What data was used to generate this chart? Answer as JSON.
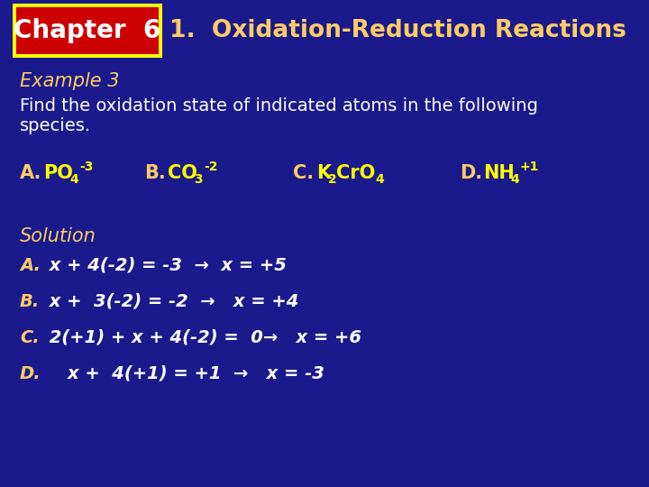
{
  "bg_color": "#1a1a8c",
  "title_text": "1.  Oxidation-Reduction Reactions",
  "title_color": "#ffcc66",
  "chapter_text": "Chapter  6",
  "chapter_bg": "#cc0000",
  "chapter_border": "#ffff00",
  "chapter_text_color": "#ffffff",
  "example_text": "Example 3",
  "example_color": "#ffcc66",
  "desc_text": "Find the oxidation state of indicated atoms in the following\nspecies.",
  "desc_color": "#ffffff",
  "item_label_color": "#ffcc66",
  "item_formula_color": "#ffff00",
  "solution_text": "Solution",
  "solution_color": "#ffcc66",
  "sol_label_color": "#ffcc66",
  "sol_text_color": "#ffffff",
  "sol_lines": [
    [
      "A.",
      " x + 4(-2) = -3  →  x = +5"
    ],
    [
      "B.",
      " x +  3(-2) = -2  →   x = +4"
    ],
    [
      "C.",
      " 2(+1) + x + 4(-2) =  0→   x = +6"
    ],
    [
      "D.",
      "    x +  4(+1) = +1  →   x = -3"
    ]
  ]
}
